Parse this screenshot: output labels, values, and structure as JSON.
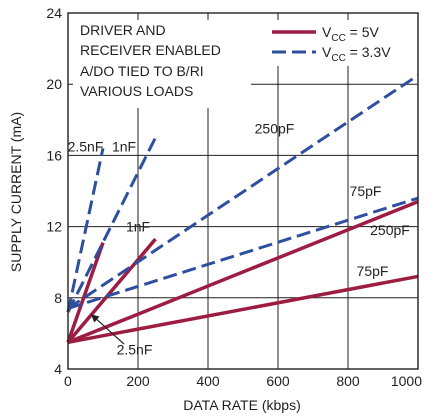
{
  "chart_data": {
    "type": "line",
    "xlabel": "DATA RATE (kbps)",
    "ylabel": "SUPPLY CURRENT (mA)",
    "xlim": [
      0,
      1000
    ],
    "ylim": [
      4,
      24
    ],
    "x_ticks": [
      "0",
      "200",
      "400",
      "600",
      "800",
      "1000"
    ],
    "y_ticks": [
      "4",
      "8",
      "12",
      "16",
      "20",
      "24"
    ],
    "grid": true,
    "annotation_lines": [
      "DRIVER AND",
      "RECEIVER ENABLED",
      "A/DO TIED TO B/RI",
      "VARIOUS LOADS"
    ],
    "legend": [
      {
        "main": "V",
        "sub": "CC",
        "rest": " = 5V",
        "style": "solid",
        "color": "#9d1c42"
      },
      {
        "main": "V",
        "sub": "CC",
        "rest": " = 3.3V",
        "style": "dashed",
        "color": "#2e4f9f"
      }
    ],
    "legend_placement": "top-right",
    "colors": {
      "vcc_5v": "#9d1c42",
      "vcc_3v3": "#2e4f9f",
      "axes": "#231f20"
    },
    "series": [
      {
        "group": "VCC = 5V",
        "load": "2.5nF",
        "style": "solid",
        "x": [
          0,
          100
        ],
        "y": [
          5.5,
          11.1
        ]
      },
      {
        "group": "VCC = 5V",
        "load": "1nF",
        "style": "solid",
        "x": [
          0,
          250
        ],
        "y": [
          5.5,
          11.3
        ]
      },
      {
        "group": "VCC = 5V",
        "load": "250pF",
        "style": "solid",
        "x": [
          0,
          1000
        ],
        "y": [
          5.5,
          13.4
        ]
      },
      {
        "group": "VCC = 5V",
        "load": "75pF",
        "style": "solid",
        "x": [
          0,
          1000
        ],
        "y": [
          5.5,
          9.2
        ]
      },
      {
        "group": "VCC = 3.3V",
        "load": "2.5nF",
        "style": "dashed",
        "x": [
          0,
          100
        ],
        "y": [
          7.2,
          16.4
        ]
      },
      {
        "group": "VCC = 3.3V",
        "load": "1nF",
        "style": "dashed",
        "x": [
          0,
          250
        ],
        "y": [
          7.2,
          17.0
        ]
      },
      {
        "group": "VCC = 3.3V",
        "load": "250pF",
        "style": "dashed",
        "x": [
          0,
          1000
        ],
        "y": [
          7.4,
          20.5
        ]
      },
      {
        "group": "VCC = 3.3V",
        "load": "75pF",
        "style": "dashed",
        "x": [
          0,
          1000
        ],
        "y": [
          7.4,
          13.6
        ]
      }
    ],
    "series_labels": [
      {
        "text": "2.5nF",
        "x": 50,
        "y": 16.5
      },
      {
        "text": "1nF",
        "x": 160,
        "y": 16.5
      },
      {
        "text": "250pF",
        "x": 590,
        "y": 17.5
      },
      {
        "text": "1nF",
        "x": 200,
        "y": 12.0
      },
      {
        "text": "75pF",
        "x": 850,
        "y": 14.0
      },
      {
        "text": "250pF",
        "x": 920,
        "y": 11.8
      },
      {
        "text": "75pF",
        "x": 870,
        "y": 9.5
      },
      {
        "text": "2.5nF",
        "x": 190,
        "y": 5.1
      }
    ],
    "arrow": {
      "from": [
        160,
        5.4
      ],
      "to": [
        70,
        7.0
      ]
    }
  }
}
